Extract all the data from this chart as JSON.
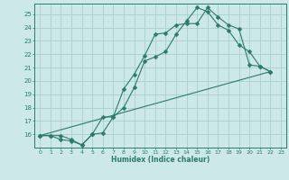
{
  "xlabel": "Humidex (Indice chaleur)",
  "bg_color": "#cce8e8",
  "grid_color": "#aacfcf",
  "line_color": "#2d7a6a",
  "xlim": [
    -0.5,
    23.5
  ],
  "ylim": [
    15.0,
    25.8
  ],
  "xticks": [
    0,
    1,
    2,
    3,
    4,
    5,
    6,
    7,
    8,
    9,
    10,
    11,
    12,
    13,
    14,
    15,
    16,
    17,
    18,
    19,
    20,
    21,
    22,
    23
  ],
  "yticks": [
    16,
    17,
    18,
    19,
    20,
    21,
    22,
    23,
    24,
    25
  ],
  "ytick_labels": [
    "16",
    "17",
    "18",
    "19",
    "20",
    "21",
    "22",
    "23",
    "24",
    "25"
  ],
  "line1_x": [
    0,
    1,
    2,
    3,
    4,
    5,
    6,
    7,
    8,
    9,
    10,
    11,
    12,
    13,
    14,
    15,
    16,
    17,
    18,
    19,
    20,
    21,
    22
  ],
  "line1_y": [
    15.9,
    15.9,
    15.9,
    15.6,
    15.2,
    16.0,
    16.1,
    17.3,
    19.4,
    20.5,
    21.9,
    23.5,
    23.6,
    24.2,
    24.3,
    24.3,
    25.5,
    24.8,
    24.2,
    23.9,
    21.2,
    21.1,
    20.7
  ],
  "line2_x": [
    0,
    1,
    2,
    3,
    4,
    5,
    6,
    7,
    8,
    9,
    10,
    11,
    12,
    13,
    14,
    15,
    16,
    17,
    18,
    19,
    20,
    21,
    22
  ],
  "line2_y": [
    15.9,
    15.9,
    15.6,
    15.5,
    15.2,
    16.0,
    17.3,
    17.3,
    18.0,
    19.5,
    21.5,
    21.8,
    22.2,
    23.5,
    24.5,
    25.5,
    25.2,
    24.2,
    23.8,
    22.7,
    22.2,
    21.1,
    20.7
  ],
  "line3_x": [
    0,
    22
  ],
  "line3_y": [
    15.9,
    20.7
  ]
}
